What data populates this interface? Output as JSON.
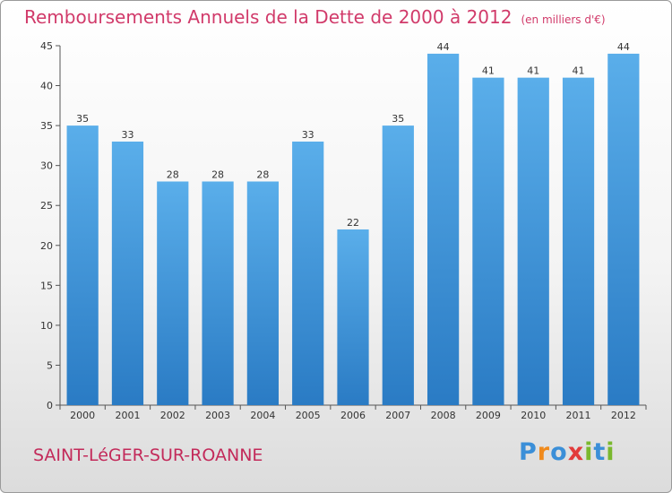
{
  "title": "Remboursements Annuels de la Dette de 2000 à 2012",
  "unit": "(en milliers d'€)",
  "commune": "SAINT-LéGER-SUR-ROANNE",
  "logo": {
    "letters": [
      {
        "char": "P",
        "color": "#3b8fd8"
      },
      {
        "char": "r",
        "color": "#f08a1c"
      },
      {
        "char": "o",
        "color": "#3b8fd8"
      },
      {
        "char": "x",
        "color": "#e23b3b"
      },
      {
        "char": "i",
        "color": "#7ab82e"
      },
      {
        "char": "t",
        "color": "#3b8fd8"
      },
      {
        "char": "i",
        "color": "#7ab82e"
      }
    ]
  },
  "colors": {
    "bar_top": "#5aaeea",
    "bar_bottom": "#2a7bc4",
    "title": "#d13a6a",
    "commune": "#c32a5a"
  },
  "chart_data": {
    "type": "bar",
    "categories": [
      "2000",
      "2001",
      "2002",
      "2003",
      "2004",
      "2005",
      "2006",
      "2007",
      "2008",
      "2009",
      "2010",
      "2011",
      "2012"
    ],
    "values": [
      35,
      33,
      28,
      28,
      28,
      33,
      22,
      35,
      44,
      41,
      41,
      41,
      44
    ],
    "title": "Remboursements Annuels de la Dette de 2000 à 2012",
    "ylim": [
      0,
      45
    ],
    "yticks": [
      0,
      5,
      10,
      15,
      20,
      25,
      30,
      35,
      40,
      45
    ],
    "grid": false,
    "legend": "none"
  }
}
